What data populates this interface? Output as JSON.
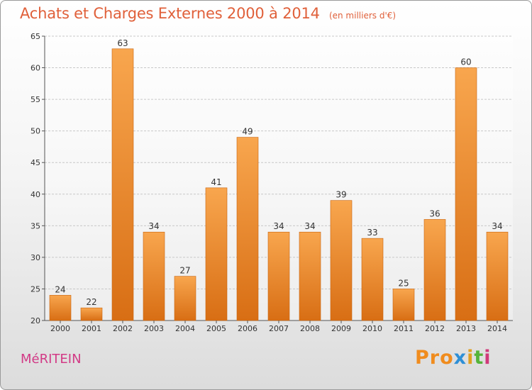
{
  "header": {
    "title": "Achats et Charges Externes 2000 à 2014",
    "unit": "(en milliers d'€)"
  },
  "footer": {
    "commune": "MéRITEIN",
    "logo": [
      "Pro",
      "x",
      "i",
      "t",
      "i"
    ]
  },
  "colors": {
    "bar_light": "#f8a64e",
    "bar_dark": "#d86e14",
    "title": "#e0603a",
    "commune": "#d23a86"
  },
  "chart_data": {
    "type": "bar",
    "title": "Achats et Charges Externes 2000 à 2014",
    "subtitle": "(en milliers d'€)",
    "categories": [
      "2000",
      "2001",
      "2002",
      "2003",
      "2004",
      "2005",
      "2006",
      "2007",
      "2008",
      "2009",
      "2010",
      "2011",
      "2012",
      "2013",
      "2014"
    ],
    "values": [
      24,
      22,
      63,
      34,
      27,
      41,
      49,
      34,
      34,
      39,
      33,
      25,
      36,
      60,
      34
    ],
    "ylim": [
      20,
      65
    ],
    "yticks": [
      20,
      25,
      30,
      35,
      40,
      45,
      50,
      55,
      60,
      65
    ],
    "grid": true
  }
}
